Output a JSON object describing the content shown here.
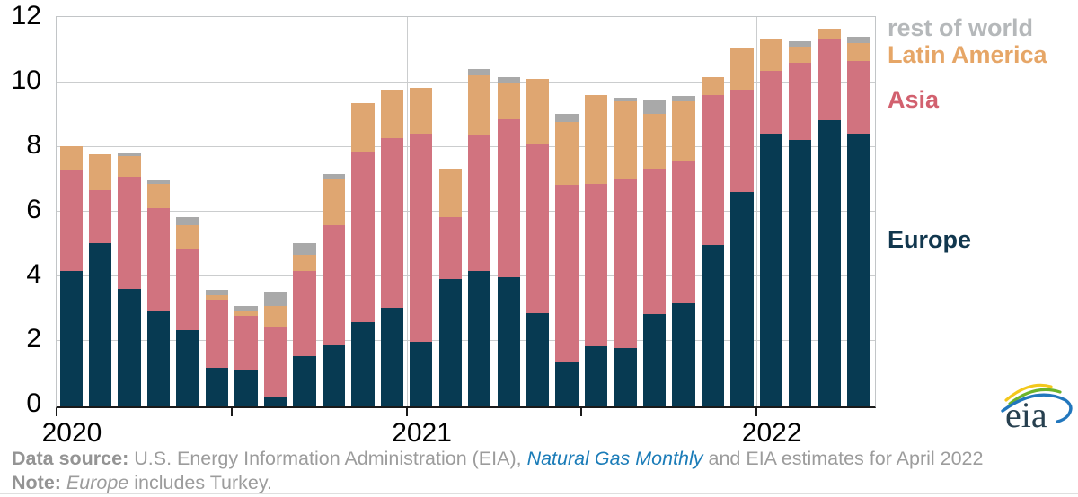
{
  "chart_data": {
    "type": "bar",
    "stacked": true,
    "title": "",
    "categories": [
      "Jan 2020",
      "Feb 2020",
      "Mar 2020",
      "Apr 2020",
      "May 2020",
      "Jun 2020",
      "Jul 2020",
      "Aug 2020",
      "Sep 2020",
      "Oct 2020",
      "Nov 2020",
      "Dec 2020",
      "Jan 2021",
      "Feb 2021",
      "Mar 2021",
      "Apr 2021",
      "May 2021",
      "Jun 2021",
      "Jul 2021",
      "Aug 2021",
      "Sep 2021",
      "Oct 2021",
      "Nov 2021",
      "Dec 2021",
      "Jan 2022",
      "Feb 2022",
      "Mar 2022",
      "Apr 2022"
    ],
    "series": [
      {
        "name": "Europe",
        "color": "#073a52",
        "values": [
          4.2,
          5.05,
          3.65,
          2.95,
          2.35,
          1.2,
          1.15,
          0.3,
          1.55,
          1.9,
          2.6,
          3.05,
          2.0,
          3.95,
          4.2,
          4.0,
          2.9,
          1.35,
          1.85,
          1.8,
          2.85,
          3.2,
          5.0,
          6.65,
          8.45,
          8.25,
          8.85,
          8.45
        ]
      },
      {
        "name": "Asia",
        "color": "#d1737f",
        "values": [
          3.1,
          1.65,
          3.45,
          3.2,
          2.5,
          2.1,
          1.65,
          2.15,
          2.65,
          3.7,
          5.3,
          5.25,
          6.45,
          1.9,
          4.2,
          4.9,
          5.2,
          5.5,
          5.05,
          5.25,
          4.5,
          4.4,
          4.65,
          3.15,
          1.95,
          2.4,
          2.5,
          2.25
        ]
      },
      {
        "name": "Latin America",
        "color": "#dfa671",
        "values": [
          0.75,
          1.1,
          0.65,
          0.75,
          0.75,
          0.15,
          0.15,
          0.65,
          0.5,
          1.45,
          1.5,
          1.5,
          1.4,
          1.5,
          1.85,
          1.1,
          2.05,
          1.95,
          2.75,
          2.4,
          1.7,
          1.85,
          0.55,
          1.3,
          1.0,
          0.5,
          0.35,
          0.55
        ]
      },
      {
        "name": "rest of world",
        "color": "#a9a9a9",
        "values": [
          0,
          0,
          0.1,
          0.1,
          0.25,
          0.15,
          0.15,
          0.45,
          0.35,
          0.15,
          0,
          0,
          0,
          0,
          0.2,
          0.2,
          0,
          0.25,
          0,
          0.1,
          0.45,
          0.15,
          0,
          0,
          0,
          0.15,
          0,
          0.2
        ]
      }
    ],
    "ylim": [
      0,
      12
    ],
    "yticks": [
      0,
      2,
      4,
      6,
      8,
      10,
      12
    ],
    "x_year_ticks": [
      {
        "index": 0,
        "label": "2020"
      },
      {
        "index": 6,
        "label": ""
      },
      {
        "index": 12,
        "label": "2021"
      },
      {
        "index": 18,
        "label": ""
      },
      {
        "index": 24,
        "label": "2022"
      }
    ],
    "grid": "horizontal gridlines every 2 units; vertical lines at year boundaries",
    "legend_position": "right"
  },
  "legend": {
    "items": [
      {
        "label": "rest of world",
        "color": "#b5b8ba"
      },
      {
        "label": "Latin America",
        "color": "#e6a667"
      },
      {
        "label": "Asia",
        "color": "#d2616f"
      },
      {
        "label": "Europe",
        "color": "#11374e"
      }
    ]
  },
  "footer": {
    "data_source_label": "Data source:",
    "data_source_text": " U.S. Energy Information Administration (EIA), ",
    "data_source_link": "Natural Gas Monthly",
    "data_source_rest": " and EIA estimates for April 2022",
    "note_label": "Note:",
    "note_italic": " Europe",
    "note_rest": " includes Turkey."
  },
  "logo": {
    "text": "eia"
  }
}
